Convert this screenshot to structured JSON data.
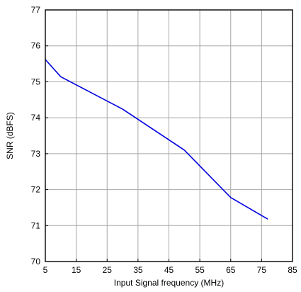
{
  "chart_data": {
    "type": "line",
    "title": "",
    "xlabel": "Input Signal frequency (MHz)",
    "ylabel": "SNR (dBFS)",
    "xlim": [
      5,
      85
    ],
    "ylim": [
      70,
      77
    ],
    "xticks": [
      5,
      15,
      25,
      35,
      45,
      55,
      65,
      75,
      85
    ],
    "yticks": [
      70,
      71,
      72,
      73,
      74,
      75,
      76,
      77
    ],
    "grid": true,
    "legend": "none",
    "series": [
      {
        "color": "#0000e0",
        "x": [
          5,
          10,
          30,
          50,
          65,
          77
        ],
        "y": [
          75.62,
          75.14,
          74.24,
          73.1,
          71.78,
          71.18
        ]
      }
    ]
  }
}
